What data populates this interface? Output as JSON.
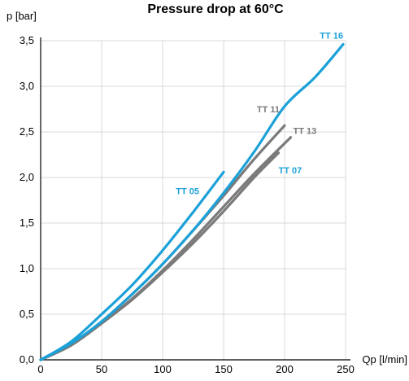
{
  "chart_data": {
    "type": "line",
    "title": "Pressure drop at 60°C",
    "xlabel": "Qp [l/min]",
    "ylabel": "p [bar]",
    "xlim": [
      0,
      250
    ],
    "ylim": [
      0,
      3.5
    ],
    "x_ticks": [
      "0",
      "50",
      "100",
      "150",
      "200",
      "250"
    ],
    "y_ticks": [
      "0,0",
      "0,5",
      "1,0",
      "1,5",
      "2,0",
      "2,5",
      "3,0",
      "3,5"
    ],
    "grid": true,
    "legend": "none",
    "series": [
      {
        "name": "TT 05",
        "color": "#1ba1d8",
        "label_color": "#1ba1d8",
        "points": [
          [
            0,
            0
          ],
          [
            25,
            0.2
          ],
          [
            50,
            0.5
          ],
          [
            75,
            0.82
          ],
          [
            100,
            1.2
          ],
          [
            125,
            1.62
          ],
          [
            150,
            2.06
          ]
        ]
      },
      {
        "name": "TT 07",
        "color": "#7a7a7a",
        "label_color": "#1ba1d8",
        "points": [
          [
            0,
            0
          ],
          [
            25,
            0.16
          ],
          [
            50,
            0.4
          ],
          [
            75,
            0.66
          ],
          [
            100,
            0.96
          ],
          [
            125,
            1.28
          ],
          [
            150,
            1.63
          ],
          [
            175,
            2.0
          ],
          [
            195,
            2.27
          ]
        ]
      },
      {
        "name": "TT 11",
        "color": "#7a7a7a",
        "label_color": "#7a7a7a",
        "points": [
          [
            0,
            0
          ],
          [
            25,
            0.17
          ],
          [
            50,
            0.42
          ],
          [
            75,
            0.72
          ],
          [
            100,
            1.05
          ],
          [
            125,
            1.42
          ],
          [
            150,
            1.8
          ],
          [
            175,
            2.2
          ],
          [
            200,
            2.57
          ]
        ]
      },
      {
        "name": "TT 13",
        "color": "#7a7a7a",
        "label_color": "#7a7a7a",
        "points": [
          [
            0,
            0
          ],
          [
            25,
            0.16
          ],
          [
            50,
            0.4
          ],
          [
            75,
            0.67
          ],
          [
            100,
            0.98
          ],
          [
            125,
            1.32
          ],
          [
            150,
            1.68
          ],
          [
            175,
            2.04
          ],
          [
            205,
            2.44
          ]
        ]
      },
      {
        "name": "TT 16",
        "color": "#1ba1d8",
        "label_color": "#1ba1d8",
        "points": [
          [
            0,
            0
          ],
          [
            25,
            0.18
          ],
          [
            50,
            0.42
          ],
          [
            75,
            0.72
          ],
          [
            100,
            1.05
          ],
          [
            125,
            1.42
          ],
          [
            150,
            1.83
          ],
          [
            175,
            2.28
          ],
          [
            200,
            2.78
          ],
          [
            225,
            3.1
          ],
          [
            248,
            3.46
          ]
        ]
      }
    ]
  }
}
